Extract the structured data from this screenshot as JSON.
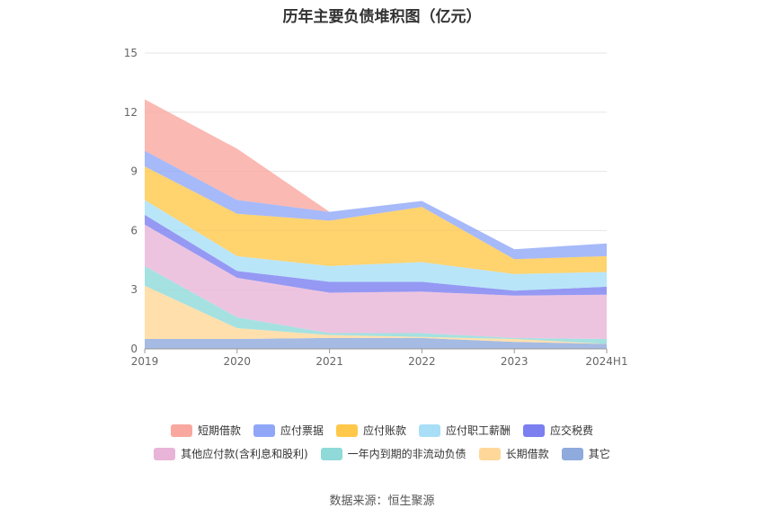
{
  "title": "历年主要负债堆积图（亿元）",
  "source": "数据来源：恒生聚源",
  "chart_data": {
    "type": "area",
    "stacked": true,
    "x": [
      "2019",
      "2020",
      "2021",
      "2022",
      "2023",
      "2024H1"
    ],
    "ylim": [
      0,
      15
    ],
    "yticks": [
      "0",
      "3",
      "6",
      "9",
      "12",
      "15"
    ],
    "grid": true,
    "legend_position": "bottom",
    "series": [
      {
        "name": "其它",
        "color": "#8faadc",
        "values": [
          0.5,
          0.5,
          0.55,
          0.55,
          0.35,
          0.25
        ]
      },
      {
        "name": "长期借款",
        "color": "#ffd899",
        "values": [
          2.7,
          0.55,
          0.15,
          0.05,
          0.15,
          0.0
        ]
      },
      {
        "name": "一年内到期的非流动负债",
        "color": "#8fd9d9",
        "values": [
          1.0,
          0.55,
          0.1,
          0.2,
          0.05,
          0.25
        ]
      },
      {
        "name": "其他应付款(含利息和股利)",
        "color": "#e8b5d8",
        "values": [
          2.1,
          2.0,
          2.05,
          2.1,
          2.15,
          2.25
        ]
      },
      {
        "name": "应交税费",
        "color": "#7b7ff0",
        "values": [
          0.5,
          0.35,
          0.55,
          0.5,
          0.25,
          0.4
        ]
      },
      {
        "name": "应付职工薪酬",
        "color": "#a8dff7",
        "values": [
          0.75,
          0.75,
          0.8,
          1.0,
          0.85,
          0.75
        ]
      },
      {
        "name": "应付账款",
        "color": "#ffc84a",
        "values": [
          1.7,
          2.15,
          2.3,
          2.8,
          0.75,
          0.8
        ]
      },
      {
        "name": "应付票据",
        "color": "#90a7f8",
        "values": [
          0.8,
          0.7,
          0.45,
          0.3,
          0.5,
          0.65
        ]
      },
      {
        "name": "短期借款",
        "color": "#f9a89f",
        "values": [
          2.6,
          2.6,
          0.0,
          0.0,
          0.0,
          0.0
        ]
      }
    ],
    "legend_rows": [
      [
        "短期借款",
        "应付票据",
        "应付账款",
        "应付职工薪酬",
        "应交税费"
      ],
      [
        "其他应付款(含利息和股利)",
        "一年内到期的非流动负债",
        "长期借款",
        "其它"
      ]
    ]
  }
}
